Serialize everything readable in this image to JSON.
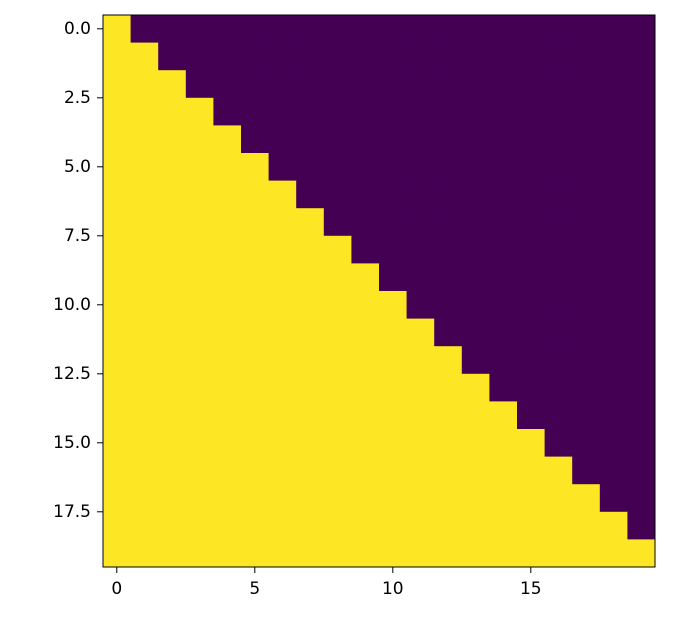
{
  "chart_data": {
    "type": "heatmap",
    "values": [
      [
        1,
        0,
        0,
        0,
        0,
        0,
        0,
        0,
        0,
        0,
        0,
        0,
        0,
        0,
        0,
        0,
        0,
        0,
        0,
        0
      ],
      [
        1,
        1,
        0,
        0,
        0,
        0,
        0,
        0,
        0,
        0,
        0,
        0,
        0,
        0,
        0,
        0,
        0,
        0,
        0,
        0
      ],
      [
        1,
        1,
        1,
        0,
        0,
        0,
        0,
        0,
        0,
        0,
        0,
        0,
        0,
        0,
        0,
        0,
        0,
        0,
        0,
        0
      ],
      [
        1,
        1,
        1,
        1,
        0,
        0,
        0,
        0,
        0,
        0,
        0,
        0,
        0,
        0,
        0,
        0,
        0,
        0,
        0,
        0
      ],
      [
        1,
        1,
        1,
        1,
        1,
        0,
        0,
        0,
        0,
        0,
        0,
        0,
        0,
        0,
        0,
        0,
        0,
        0,
        0,
        0
      ],
      [
        1,
        1,
        1,
        1,
        1,
        1,
        0,
        0,
        0,
        0,
        0,
        0,
        0,
        0,
        0,
        0,
        0,
        0,
        0,
        0
      ],
      [
        1,
        1,
        1,
        1,
        1,
        1,
        1,
        0,
        0,
        0,
        0,
        0,
        0,
        0,
        0,
        0,
        0,
        0,
        0,
        0
      ],
      [
        1,
        1,
        1,
        1,
        1,
        1,
        1,
        1,
        0,
        0,
        0,
        0,
        0,
        0,
        0,
        0,
        0,
        0,
        0,
        0
      ],
      [
        1,
        1,
        1,
        1,
        1,
        1,
        1,
        1,
        1,
        0,
        0,
        0,
        0,
        0,
        0,
        0,
        0,
        0,
        0,
        0
      ],
      [
        1,
        1,
        1,
        1,
        1,
        1,
        1,
        1,
        1,
        1,
        0,
        0,
        0,
        0,
        0,
        0,
        0,
        0,
        0,
        0
      ],
      [
        1,
        1,
        1,
        1,
        1,
        1,
        1,
        1,
        1,
        1,
        1,
        0,
        0,
        0,
        0,
        0,
        0,
        0,
        0,
        0
      ],
      [
        1,
        1,
        1,
        1,
        1,
        1,
        1,
        1,
        1,
        1,
        1,
        1,
        0,
        0,
        0,
        0,
        0,
        0,
        0,
        0
      ],
      [
        1,
        1,
        1,
        1,
        1,
        1,
        1,
        1,
        1,
        1,
        1,
        1,
        1,
        0,
        0,
        0,
        0,
        0,
        0,
        0
      ],
      [
        1,
        1,
        1,
        1,
        1,
        1,
        1,
        1,
        1,
        1,
        1,
        1,
        1,
        1,
        0,
        0,
        0,
        0,
        0,
        0
      ],
      [
        1,
        1,
        1,
        1,
        1,
        1,
        1,
        1,
        1,
        1,
        1,
        1,
        1,
        1,
        1,
        0,
        0,
        0,
        0,
        0
      ],
      [
        1,
        1,
        1,
        1,
        1,
        1,
        1,
        1,
        1,
        1,
        1,
        1,
        1,
        1,
        1,
        1,
        0,
        0,
        0,
        0
      ],
      [
        1,
        1,
        1,
        1,
        1,
        1,
        1,
        1,
        1,
        1,
        1,
        1,
        1,
        1,
        1,
        1,
        1,
        0,
        0,
        0
      ],
      [
        1,
        1,
        1,
        1,
        1,
        1,
        1,
        1,
        1,
        1,
        1,
        1,
        1,
        1,
        1,
        1,
        1,
        1,
        0,
        0
      ],
      [
        1,
        1,
        1,
        1,
        1,
        1,
        1,
        1,
        1,
        1,
        1,
        1,
        1,
        1,
        1,
        1,
        1,
        1,
        1,
        0
      ],
      [
        1,
        1,
        1,
        1,
        1,
        1,
        1,
        1,
        1,
        1,
        1,
        1,
        1,
        1,
        1,
        1,
        1,
        1,
        1,
        1
      ]
    ],
    "cmap_colors": [
      "#440154",
      "#fde725"
    ],
    "xlim": [
      -0.5,
      19.5
    ],
    "xticks": [
      0,
      5,
      10,
      15
    ],
    "ylim": [
      -0.5,
      19.5
    ],
    "y_inverted": true,
    "yticks": [
      {
        "value": 0,
        "label": "0.0"
      },
      2.5,
      {
        "value": 5,
        "label": "5.0"
      },
      7.5,
      {
        "value": 10,
        "label": "10.0"
      },
      12.5,
      {
        "value": 15,
        "label": "15.0"
      },
      17.5
    ]
  }
}
